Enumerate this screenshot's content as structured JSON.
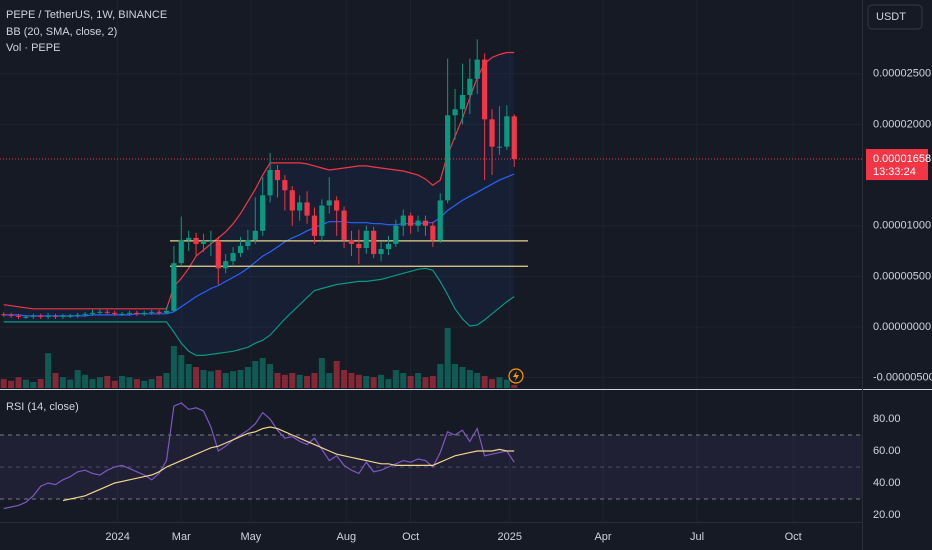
{
  "chart_data": {
    "type": "candlestick",
    "title": "PEPE / TetherUS, 1W, BINANCE",
    "currency": "USDT",
    "up_color": "#089981",
    "down_color": "#f23645",
    "xlim": [
      -0.5,
      116
    ],
    "xticks": [
      {
        "value": 15.4,
        "label": "2024"
      },
      {
        "value": 24,
        "label": "Mar"
      },
      {
        "value": 33.4,
        "label": "May"
      },
      {
        "value": 46.3,
        "label": "Aug"
      },
      {
        "value": 55,
        "label": "Oct"
      },
      {
        "value": 68.4,
        "label": "2025"
      },
      {
        "value": 81,
        "label": "Apr"
      },
      {
        "value": 93.7,
        "label": "Jul"
      },
      {
        "value": 106.7,
        "label": "Oct"
      }
    ],
    "ylim": [
      -6.02e-06,
      3.228e-05
    ],
    "yticks": [
      {
        "value": 2.5e-05,
        "label": "0.00002500"
      },
      {
        "value": 2e-05,
        "label": "0.00002000"
      },
      {
        "value": 1e-05,
        "label": "0.00001000"
      },
      {
        "value": 5e-06,
        "label": "0.00000500"
      },
      {
        "value": 0,
        "label": "0.00000000"
      },
      {
        "value": -5e-06,
        "label": "-0.00000500"
      }
    ],
    "grid": true,
    "open": [
      1.25e-06,
      1.2e-06,
      1.1e-06,
      1e-06,
      1e-06,
      1.1e-06,
      1e-06,
      1.1e-06,
      1e-06,
      1.1e-06,
      1.1e-06,
      1.2e-06,
      1.3e-06,
      1.4e-06,
      1.5e-06,
      1.4e-06,
      1.3e-06,
      1.3e-06,
      1.4e-06,
      1.3e-06,
      1.4e-06,
      1.5e-06,
      1.4e-06,
      1.6e-06,
      6.3e-06,
      8.6e-06,
      8.8e-06,
      8.2e-06,
      8.5e-06,
      8.5e-06,
      5.8e-06,
      6.5e-06,
      7.3e-06,
      8e-06,
      8.6e-06,
      9.5e-06,
      1.3e-05,
      1.55e-05,
      1.45e-05,
      1.35e-05,
      1.15e-05,
      1.23e-05,
      1.1e-05,
      9e-06,
      1.2e-05,
      1.25e-05,
      1.15e-05,
      8.6e-06,
      8.2e-06,
      7.8e-06,
      9.5e-06,
      7.2e-06,
      7.7e-06,
      8.2e-06,
      1e-05,
      1.1e-05,
      1e-05,
      1.05e-05,
      1e-05,
      8.6e-06,
      1.25e-05,
      2.09e-05,
      2.15e-05,
      2.29e-05,
      2.45e-05,
      2.64e-05,
      2.05e-05,
      1.78e-05,
      1.78e-05,
      2.08e-05
    ],
    "high": [
      1.45e-06,
      1.4e-06,
      1.3e-06,
      1.2e-06,
      1.3e-06,
      1.3e-06,
      1.4e-06,
      1.3e-06,
      1.3e-06,
      1.3e-06,
      1.4e-06,
      1.5e-06,
      1.7e-06,
      1.8e-06,
      1.7e-06,
      1.6e-06,
      1.5e-06,
      1.6e-06,
      1.6e-06,
      1.6e-06,
      1.7e-06,
      1.7e-06,
      2e-06,
      8e-06,
      1.09e-05,
      9.5e-06,
      9.3e-06,
      9.2e-06,
      9.5e-06,
      8.9e-06,
      7.2e-06,
      7.9e-06,
      8.9e-06,
      9.6e-06,
      1.28e-05,
      1.48e-05,
      1.72e-05,
      1.6e-05,
      1.5e-05,
      1.39e-05,
      1.3e-05,
      1.34e-05,
      1.18e-05,
      1.26e-05,
      1.48e-05,
      1.29e-05,
      1.19e-05,
      9.5e-06,
      9.6e-06,
      1e-05,
      9.9e-06,
      8.4e-06,
      9e-06,
      1.06e-05,
      1.16e-05,
      1.13e-05,
      1.1e-05,
      1.1e-05,
      1.04e-05,
      1.32e-05,
      2.65e-05,
      2.35e-05,
      2.6e-05,
      2.65e-05,
      2.84e-05,
      2.7e-05,
      2.15e-05,
      2.18e-05,
      2.19e-05,
      2.1e-05
    ],
    "low": [
      1e-06,
      9e-07,
      8e-07,
      8e-07,
      8e-07,
      8e-07,
      8e-07,
      8e-07,
      8e-07,
      9e-07,
      9e-07,
      1e-06,
      1.1e-06,
      1.2e-06,
      1.2e-06,
      1.1e-06,
      1.1e-06,
      1.1e-06,
      1.1e-06,
      1.1e-06,
      1.2e-06,
      1.2e-06,
      1.3e-06,
      1.5e-06,
      6e-06,
      7.5e-06,
      7e-06,
      7.4e-06,
      7e-06,
      4.2e-06,
      5.3e-06,
      6e-06,
      6.9e-06,
      7.6e-06,
      8.2e-06,
      9e-06,
      1.23e-05,
      1.28e-05,
      1.15e-05,
      1e-05,
      1.05e-05,
      1.02e-05,
      8.2e-06,
      8.5e-06,
      1.12e-05,
      9e-06,
      7.8e-06,
      7e-06,
      6.2e-06,
      7.2e-06,
      6.8e-06,
      6.5e-06,
      7.1e-06,
      7.9e-06,
      9e-06,
      9.2e-06,
      9.4e-06,
      9e-06,
      7.9e-06,
      8.3e-06,
      1.22e-05,
      1.85e-05,
      2e-05,
      2.1e-05,
      2.3e-05,
      1.45e-05,
      1.5e-05,
      1.7e-05,
      1.75e-05,
      1.58e-05
    ],
    "close": [
      1.2e-06,
      1.1e-06,
      1e-06,
      1e-06,
      1.1e-06,
      1e-06,
      1.1e-06,
      1e-06,
      1.1e-06,
      1.1e-06,
      1.2e-06,
      1.3e-06,
      1.4e-06,
      1.5e-06,
      1.4e-06,
      1.3e-06,
      1.3e-06,
      1.4e-06,
      1.3e-06,
      1.4e-06,
      1.5e-06,
      1.4e-06,
      1.6e-06,
      6.3e-06,
      8.6e-06,
      8.8e-06,
      8.2e-06,
      8.5e-06,
      8.5e-06,
      5.8e-06,
      6.5e-06,
      7.3e-06,
      8e-06,
      8.6e-06,
      9.5e-06,
      1.3e-05,
      1.55e-05,
      1.45e-05,
      1.35e-05,
      1.15e-05,
      1.23e-05,
      1.1e-05,
      9e-06,
      1.2e-05,
      1.25e-05,
      1.15e-05,
      8.6e-06,
      8.2e-06,
      7.8e-06,
      9.5e-06,
      7.2e-06,
      7.7e-06,
      8.2e-06,
      1e-05,
      1.1e-05,
      1e-05,
      1.05e-05,
      1e-05,
      8.6e-06,
      1.25e-05,
      2.09e-05,
      2.15e-05,
      2.29e-05,
      2.45e-05,
      2.64e-05,
      2.05e-05,
      1.78e-05,
      1.78e-05,
      2.08e-05,
      1.658e-05
    ],
    "volume": {
      "name": "Vol · PEPE",
      "values": [
        15,
        12,
        18,
        14,
        10,
        15,
        58,
        25,
        18,
        14,
        30,
        22,
        15,
        18,
        20,
        12,
        20,
        18,
        15,
        12,
        15,
        20,
        25,
        70,
        55,
        40,
        35,
        30,
        28,
        30,
        25,
        28,
        30,
        35,
        45,
        50,
        40,
        25,
        22,
        25,
        22,
        20,
        25,
        50,
        25,
        45,
        30,
        25,
        22,
        20,
        18,
        22,
        15,
        30,
        25,
        20,
        25,
        18,
        20,
        40,
        100,
        40,
        35,
        30,
        25,
        20,
        15,
        18,
        14,
        5
      ]
    },
    "bollinger": {
      "name": "BB (20, SMA, close, 2)",
      "fill": "rgba(41,98,255,0.07)",
      "upper": {
        "color": "#f23645",
        "values": [
          2.2e-06,
          2.1e-06,
          2e-06,
          1.9e-06,
          1.8e-06,
          1.8e-06,
          1.8e-06,
          1.8e-06,
          1.8e-06,
          1.8e-06,
          1.8e-06,
          1.8e-06,
          1.8e-06,
          1.8e-06,
          1.8e-06,
          1.8e-06,
          1.8e-06,
          1.8e-06,
          1.8e-06,
          1.8e-06,
          1.8e-06,
          1.8e-06,
          1.8e-06,
          4e-06,
          4.8e-06,
          5.8e-06,
          7e-06,
          7.6e-06,
          8.2e-06,
          8.8e-06,
          9.4e-06,
          1.02e-05,
          1.12e-05,
          1.24e-05,
          1.36e-05,
          1.5e-05,
          1.62e-05,
          1.62e-05,
          1.62e-05,
          1.62e-05,
          1.62e-05,
          1.61e-05,
          1.59e-05,
          1.57e-05,
          1.55e-05,
          1.56e-05,
          1.57e-05,
          1.58e-05,
          1.59e-05,
          1.59e-05,
          1.58e-05,
          1.57e-05,
          1.56e-05,
          1.55e-05,
          1.54e-05,
          1.52e-05,
          1.5e-05,
          1.46e-05,
          1.4e-05,
          1.45e-05,
          1.7e-05,
          1.88e-05,
          2.06e-05,
          2.26e-05,
          2.46e-05,
          2.6e-05,
          2.66e-05,
          2.69e-05,
          2.71e-05,
          2.71e-05
        ]
      },
      "basis": {
        "color": "#2962ff",
        "values": [
          1.2e-06,
          1.2e-06,
          1.2e-06,
          1.1e-06,
          1.1e-06,
          1.1e-06,
          1.1e-06,
          1.1e-06,
          1.1e-06,
          1.1e-06,
          1.1e-06,
          1.1e-06,
          1.2e-06,
          1.2e-06,
          1.2e-06,
          1.2e-06,
          1.2e-06,
          1.2e-06,
          1.3e-06,
          1.3e-06,
          1.3e-06,
          1.3e-06,
          1.3e-06,
          1.5e-06,
          2e-06,
          2.5e-06,
          3e-06,
          3.4e-06,
          3.8e-06,
          4.1e-06,
          4.5e-06,
          4.9e-06,
          5.3e-06,
          5.8e-06,
          6.4e-06,
          7e-06,
          7.4e-06,
          7.9e-06,
          8.4e-06,
          8.8e-06,
          9.1e-06,
          9.5e-06,
          9.8e-06,
          1.01e-05,
          1.04e-05,
          1.04e-05,
          1.04e-05,
          1.03e-05,
          1.03e-05,
          1.03e-05,
          1.02e-05,
          1.02e-05,
          1.01e-05,
          1.01e-05,
          1.02e-05,
          1.02e-05,
          1.02e-05,
          1.03e-05,
          1.03e-05,
          1.08e-05,
          1.15e-05,
          1.2e-05,
          1.25e-05,
          1.29e-05,
          1.33e-05,
          1.37e-05,
          1.41e-05,
          1.45e-05,
          1.48e-05,
          1.51e-05
        ]
      },
      "lower": {
        "color": "#089981",
        "values": [
          5e-07,
          5e-07,
          5e-07,
          5e-07,
          5e-07,
          5e-07,
          5e-07,
          5e-07,
          5e-07,
          5e-07,
          5e-07,
          5e-07,
          5e-07,
          5e-07,
          5e-07,
          5e-07,
          5e-07,
          5e-07,
          5e-07,
          5e-07,
          5e-07,
          5e-07,
          5e-07,
          -5e-07,
          -1.6e-06,
          -2.4e-06,
          -2.8e-06,
          -2.8e-06,
          -2.7e-06,
          -2.6e-06,
          -2.5e-06,
          -2.4e-06,
          -2.2e-06,
          -2e-06,
          -1.6e-06,
          -1.3e-06,
          -8e-07,
          0,
          8e-07,
          1.5e-06,
          2.2e-06,
          2.9e-06,
          3.6e-06,
          3.8e-06,
          4e-06,
          4.2e-06,
          4.3e-06,
          4.4e-06,
          4.5e-06,
          4.5e-06,
          4.6e-06,
          4.7e-06,
          4.9e-06,
          5.1e-06,
          5.3e-06,
          5.5e-06,
          5.7e-06,
          5.8e-06,
          5.6e-06,
          4.5e-06,
          3.2e-06,
          1.8e-06,
          8e-07,
          1e-07,
          2e-07,
          7e-07,
          1.3e-06,
          1.9e-06,
          2.5e-06,
          3e-06
        ]
      }
    },
    "hlines": {
      "color": "#e8d48a",
      "values": [
        8.5e-06,
        6e-06
      ]
    },
    "last_price": {
      "value": 1.658e-05,
      "label": "0.00001658",
      "countdown": "13:33:24",
      "color": "#f23645"
    },
    "rsi": {
      "title": "RSI (14, close)",
      "ylim": [
        15.6,
        95
      ],
      "yticks": [
        {
          "value": 80,
          "label": "80.00"
        },
        {
          "value": 60,
          "label": "60.00"
        },
        {
          "value": 40,
          "label": "40.00"
        },
        {
          "value": 20,
          "label": "20.00"
        }
      ],
      "bands": [
        30,
        70
      ],
      "midline": 50,
      "color": "#7e57c2",
      "ma_color": "#f0d58c",
      "values": [
        24,
        25,
        26,
        28,
        32,
        38,
        40,
        39,
        42,
        44,
        47,
        48,
        46,
        45,
        48,
        50,
        51,
        49,
        47,
        45,
        42,
        46,
        54,
        88,
        90,
        86,
        87,
        85,
        75,
        60,
        63,
        67,
        70,
        73,
        77,
        84,
        80,
        73,
        68,
        69,
        66,
        64,
        68,
        61,
        54,
        57,
        51,
        48,
        46,
        53,
        47,
        48,
        50,
        52,
        54,
        53,
        55,
        54,
        50,
        59,
        72,
        70,
        73,
        66,
        74,
        57,
        58,
        59,
        60,
        53
      ],
      "ma_values": [
        null,
        null,
        null,
        null,
        null,
        null,
        null,
        null,
        29,
        30,
        31,
        32,
        34,
        36,
        38,
        40,
        41,
        42,
        43,
        44,
        45,
        47,
        50,
        52,
        54,
        56,
        58,
        60,
        62,
        63,
        65,
        67,
        69,
        71,
        72,
        74,
        75,
        74,
        72,
        70,
        68,
        66,
        64,
        62,
        60,
        58,
        57,
        56,
        55,
        54,
        53,
        52,
        52,
        51,
        51,
        51,
        51,
        51,
        51,
        53,
        55,
        57,
        58,
        59,
        60,
        60,
        60,
        61,
        60,
        60
      ]
    }
  }
}
